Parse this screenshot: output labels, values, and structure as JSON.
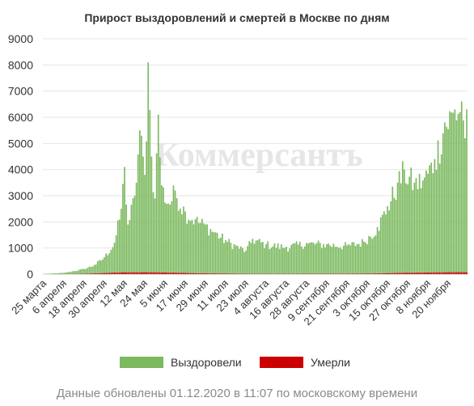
{
  "chart_data": {
    "type": "bar",
    "title": "Прирост выздоровлений и смертей в Москве по дням",
    "ylim": [
      0,
      9000
    ],
    "yticks": [
      0,
      1000,
      2000,
      3000,
      4000,
      5000,
      6000,
      7000,
      8000,
      9000
    ],
    "grid": true,
    "legend_position": "bottom",
    "xtick_labels": [
      "25 марта",
      "6 апреля",
      "18 апреля",
      "30 апреля",
      "12 мая",
      "24 мая",
      "5 июня",
      "17 июня",
      "29 июня",
      "11 июля",
      "23 июля",
      "4 августа",
      "16 августа",
      "28 августа",
      "9 сентября",
      "21 сентября",
      "3 октября",
      "15 октября",
      "27 октября",
      "8 ноября",
      "20 ноября"
    ],
    "series": [
      {
        "name": "Выздоровели",
        "color": "#7cb95f"
      },
      {
        "name": "Умерли",
        "color": "#cc0000"
      }
    ],
    "anchors": [
      {
        "x": 0,
        "recovered": 0,
        "deaths": 0
      },
      {
        "x": 6,
        "recovered": 30,
        "deaths": 0
      },
      {
        "x": 12,
        "recovered": 50,
        "deaths": 2
      },
      {
        "x": 18,
        "recovered": 120,
        "deaths": 5
      },
      {
        "x": 24,
        "recovered": 200,
        "deaths": 12
      },
      {
        "x": 30,
        "recovered": 350,
        "deaths": 25
      },
      {
        "x": 36,
        "recovered": 650,
        "deaths": 40
      },
      {
        "x": 42,
        "recovered": 1200,
        "deaths": 60
      },
      {
        "x": 46,
        "recovered": 2500,
        "deaths": 65
      },
      {
        "x": 48,
        "recovered": 4100,
        "deaths": 70
      },
      {
        "x": 50,
        "recovered": 1900,
        "deaths": 70
      },
      {
        "x": 54,
        "recovered": 3000,
        "deaths": 70
      },
      {
        "x": 57,
        "recovered": 5500,
        "deaths": 70
      },
      {
        "x": 60,
        "recovered": 3800,
        "deaths": 72
      },
      {
        "x": 62,
        "recovered": 8100,
        "deaths": 72
      },
      {
        "x": 64,
        "recovered": 4500,
        "deaths": 70
      },
      {
        "x": 66,
        "recovered": 2900,
        "deaths": 70
      },
      {
        "x": 68,
        "recovered": 6100,
        "deaths": 68
      },
      {
        "x": 70,
        "recovered": 3400,
        "deaths": 65
      },
      {
        "x": 74,
        "recovered": 2700,
        "deaths": 60
      },
      {
        "x": 78,
        "recovered": 3200,
        "deaths": 55
      },
      {
        "x": 84,
        "recovered": 2400,
        "deaths": 45
      },
      {
        "x": 90,
        "recovered": 2100,
        "deaths": 35
      },
      {
        "x": 96,
        "recovered": 1900,
        "deaths": 28
      },
      {
        "x": 102,
        "recovered": 1600,
        "deaths": 25
      },
      {
        "x": 108,
        "recovered": 1300,
        "deaths": 20
      },
      {
        "x": 114,
        "recovered": 1100,
        "deaths": 15
      },
      {
        "x": 120,
        "recovered": 900,
        "deaths": 12
      },
      {
        "x": 124,
        "recovered": 1350,
        "deaths": 10
      },
      {
        "x": 132,
        "recovered": 1150,
        "deaths": 10
      },
      {
        "x": 144,
        "recovered": 1050,
        "deaths": 10
      },
      {
        "x": 156,
        "recovered": 1200,
        "deaths": 12
      },
      {
        "x": 168,
        "recovered": 1150,
        "deaths": 12
      },
      {
        "x": 180,
        "recovered": 1100,
        "deaths": 14
      },
      {
        "x": 190,
        "recovered": 1250,
        "deaths": 18
      },
      {
        "x": 198,
        "recovered": 1800,
        "deaths": 25
      },
      {
        "x": 204,
        "recovered": 2600,
        "deaths": 35
      },
      {
        "x": 210,
        "recovered": 3500,
        "deaths": 45
      },
      {
        "x": 214,
        "recovered": 4000,
        "deaths": 50
      },
      {
        "x": 220,
        "recovered": 3500,
        "deaths": 55
      },
      {
        "x": 226,
        "recovered": 3700,
        "deaths": 60
      },
      {
        "x": 232,
        "recovered": 4400,
        "deaths": 65
      },
      {
        "x": 238,
        "recovered": 5800,
        "deaths": 70
      },
      {
        "x": 244,
        "recovered": 6300,
        "deaths": 75
      },
      {
        "x": 248,
        "recovered": 6600,
        "deaths": 75
      },
      {
        "x": 250,
        "recovered": 5200,
        "deaths": 75
      },
      {
        "x": 251,
        "recovered": 6300,
        "deaths": 76
      }
    ]
  },
  "legend": {
    "recovered_label": "Выздоровели",
    "deaths_label": "Умерли"
  },
  "watermark": "Коммерсантъ",
  "footer": "Данные обновлены 01.12.2020 в 11:07 по московскому времени"
}
